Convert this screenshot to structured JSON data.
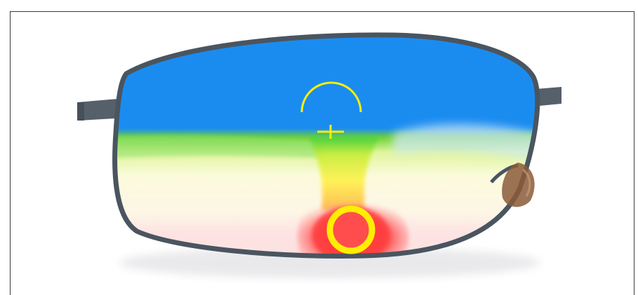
{
  "image": {
    "subject": "progressive-lens-zone-map",
    "colors": {
      "distance_zone": "#1a8cf0",
      "intermediate_zone": "#2ecc40",
      "near_zone": "#ff4d4d",
      "peripheral_blur": "#f7f7d0",
      "reference_marks": "#ffee00",
      "frame_metal": "#4a5560",
      "nose_pad": "#8a5a3a"
    },
    "icons": [
      "distance-reference-arc-icon",
      "fitting-cross-icon",
      "near-reference-ring-icon"
    ]
  }
}
